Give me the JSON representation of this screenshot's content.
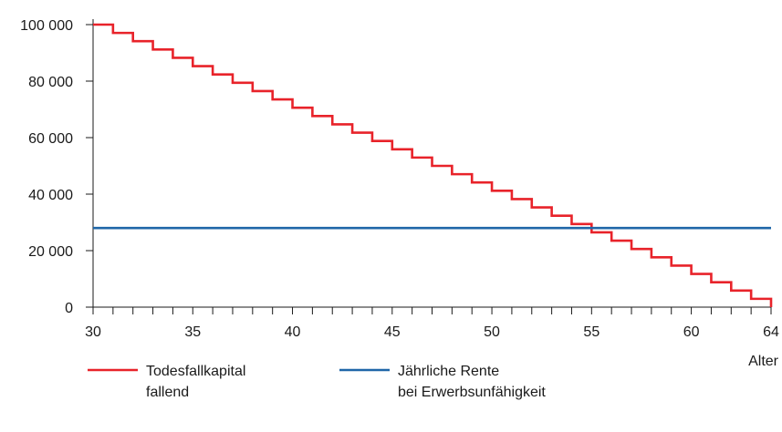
{
  "chart_data": {
    "type": "line",
    "xlabel": "Alter",
    "ylabel": "",
    "xlim": [
      30,
      64
    ],
    "ylim": [
      0,
      100000
    ],
    "x_ticks": [
      30,
      35,
      40,
      45,
      50,
      55,
      60,
      64
    ],
    "x_tick_labels": [
      "30",
      "35",
      "40",
      "45",
      "50",
      "55",
      "60",
      "64"
    ],
    "x_minor_ticks_every": 1,
    "y_ticks": [
      0,
      20000,
      40000,
      60000,
      80000,
      100000
    ],
    "y_tick_labels": [
      "0",
      "20 000",
      "40 000",
      "60 000",
      "80 000",
      "100 000"
    ],
    "grid": false,
    "legend_position": "bottom",
    "series": [
      {
        "name": "Todesfallkapital fallend",
        "legend_lines": [
          "Todesfallkapital",
          "fallend"
        ],
        "style": "step",
        "color": "#e8232a",
        "x": [
          30,
          31,
          32,
          33,
          34,
          35,
          36,
          37,
          38,
          39,
          40,
          41,
          42,
          43,
          44,
          45,
          46,
          47,
          48,
          49,
          50,
          51,
          52,
          53,
          54,
          55,
          56,
          57,
          58,
          59,
          60,
          61,
          62,
          63,
          64
        ],
        "values": [
          100000,
          97059,
          94118,
          91176,
          88235,
          85294,
          82353,
          79412,
          76471,
          73529,
          70588,
          67647,
          64706,
          61765,
          58824,
          55882,
          52941,
          50000,
          47059,
          44118,
          41176,
          38235,
          35294,
          32353,
          29412,
          26471,
          23529,
          20588,
          17647,
          14706,
          11765,
          8824,
          5882,
          2941,
          0
        ]
      },
      {
        "name": "Jährliche Rente bei Erwerbsunfähigkeit",
        "legend_lines": [
          "Jährliche Rente",
          "bei Erwerbsunfähigkeit"
        ],
        "style": "line",
        "color": "#1f66a8",
        "x": [
          30,
          64
        ],
        "values": [
          28000,
          28000
        ]
      }
    ]
  }
}
